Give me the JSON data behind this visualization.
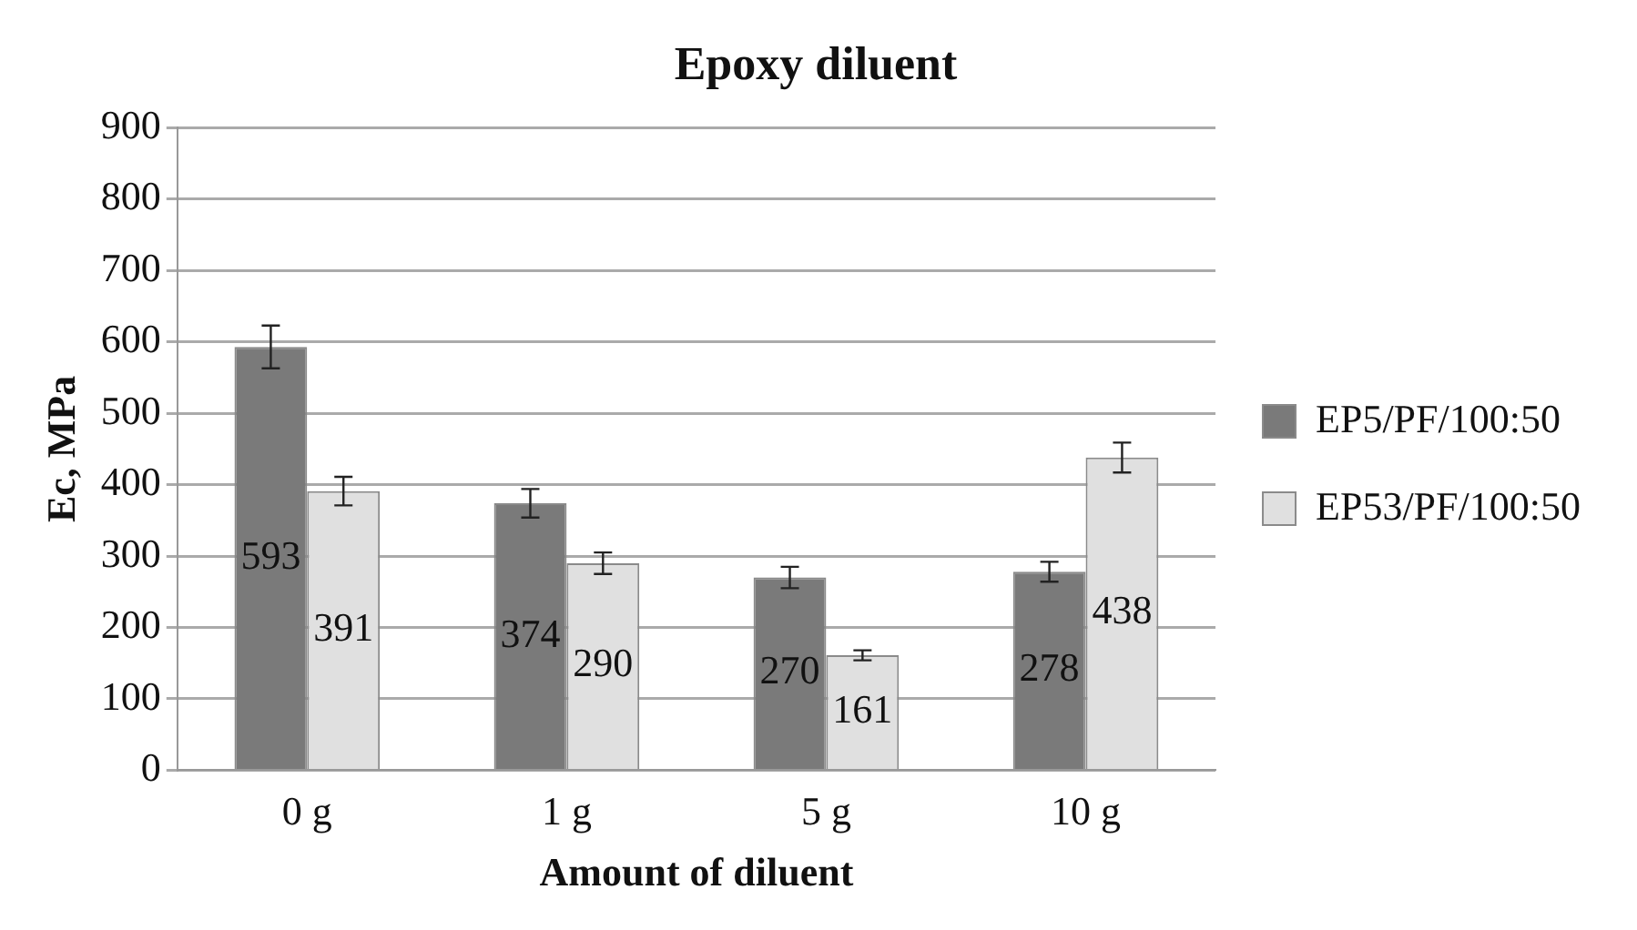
{
  "chart_data": {
    "type": "bar",
    "title": "Epoxy diluent",
    "xlabel": "Amount of diluent",
    "ylabel": "Ec, MPa",
    "categories": [
      "0 g",
      "1 g",
      "5 g",
      "10 g"
    ],
    "series": [
      {
        "name": "EP5/PF/100:50",
        "color": "#7a7a7a",
        "values": [
          593,
          374,
          270,
          278
        ],
        "errors": [
          30,
          20,
          15,
          14
        ]
      },
      {
        "name": "EP53/PF/100:50",
        "color": "#e0e0e0",
        "values": [
          391,
          290,
          161,
          438
        ],
        "errors": [
          20,
          15,
          7,
          21
        ]
      }
    ],
    "ylim": [
      0,
      900
    ],
    "yticks": [
      0,
      100,
      200,
      300,
      400,
      500,
      600,
      700,
      800,
      900
    ],
    "grid": "y",
    "legend": "right",
    "data_labels": true
  }
}
